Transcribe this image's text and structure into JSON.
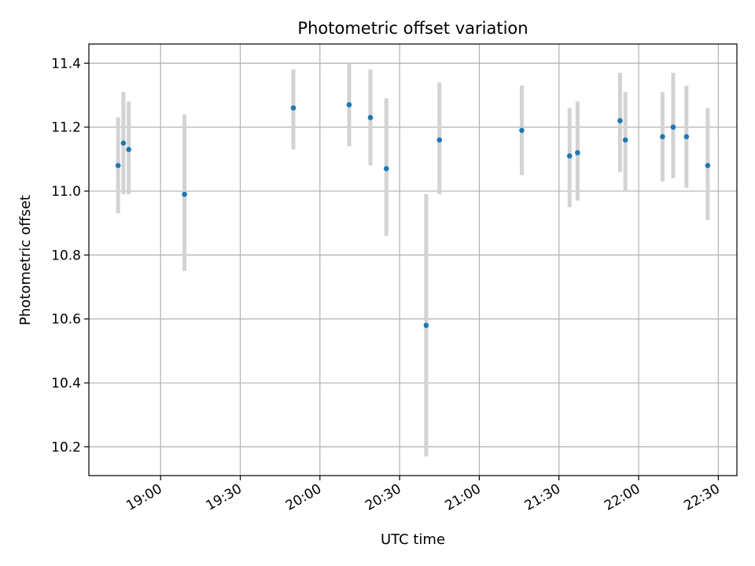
{
  "chart_data": {
    "type": "scatter",
    "title": "Photometric offset variation",
    "xlabel": "UTC time",
    "ylabel": "Photometric offset",
    "x_unit": "UTC time (HH:MM)",
    "xlim": [
      "18:33",
      "22:37"
    ],
    "ylim": [
      10.11,
      11.46
    ],
    "x_ticks": [
      "19:00",
      "19:30",
      "20:00",
      "20:30",
      "21:00",
      "21:30",
      "22:00",
      "22:30"
    ],
    "y_ticks": [
      10.2,
      10.4,
      10.6,
      10.8,
      11.0,
      11.2,
      11.4
    ],
    "y_tick_labels": [
      "10.2",
      "10.4",
      "10.6",
      "10.8",
      "11.0",
      "11.2",
      "11.4"
    ],
    "grid": true,
    "legend": "none",
    "colors": {
      "marker": "#1f77b4",
      "error_bar": "#d3d3d3",
      "grid": "#b0b0b0",
      "axes": "#000000"
    },
    "points": [
      {
        "x": "18:44",
        "y": 11.08,
        "y_low": 10.93,
        "y_high": 11.23
      },
      {
        "x": "18:46",
        "y": 11.15,
        "y_low": 10.99,
        "y_high": 11.31
      },
      {
        "x": "18:48",
        "y": 11.13,
        "y_low": 10.99,
        "y_high": 11.28
      },
      {
        "x": "19:09",
        "y": 10.99,
        "y_low": 10.75,
        "y_high": 11.24
      },
      {
        "x": "19:50",
        "y": 11.26,
        "y_low": 11.13,
        "y_high": 11.38
      },
      {
        "x": "20:11",
        "y": 11.27,
        "y_low": 11.14,
        "y_high": 11.4
      },
      {
        "x": "20:19",
        "y": 11.23,
        "y_low": 11.08,
        "y_high": 11.38
      },
      {
        "x": "20:25",
        "y": 11.07,
        "y_low": 10.86,
        "y_high": 11.29
      },
      {
        "x": "20:40",
        "y": 10.58,
        "y_low": 10.17,
        "y_high": 10.99
      },
      {
        "x": "20:45",
        "y": 11.16,
        "y_low": 10.99,
        "y_high": 11.34
      },
      {
        "x": "21:16",
        "y": 11.19,
        "y_low": 11.05,
        "y_high": 11.33
      },
      {
        "x": "21:34",
        "y": 11.11,
        "y_low": 10.95,
        "y_high": 11.26
      },
      {
        "x": "21:37",
        "y": 11.12,
        "y_low": 10.97,
        "y_high": 11.28
      },
      {
        "x": "21:53",
        "y": 11.22,
        "y_low": 11.06,
        "y_high": 11.37
      },
      {
        "x": "21:55",
        "y": 11.16,
        "y_low": 11.0,
        "y_high": 11.31
      },
      {
        "x": "22:09",
        "y": 11.17,
        "y_low": 11.03,
        "y_high": 11.31
      },
      {
        "x": "22:13",
        "y": 11.2,
        "y_low": 11.04,
        "y_high": 11.37
      },
      {
        "x": "22:18",
        "y": 11.17,
        "y_low": 11.01,
        "y_high": 11.33
      },
      {
        "x": "22:26",
        "y": 11.08,
        "y_low": 10.91,
        "y_high": 11.26
      }
    ]
  }
}
